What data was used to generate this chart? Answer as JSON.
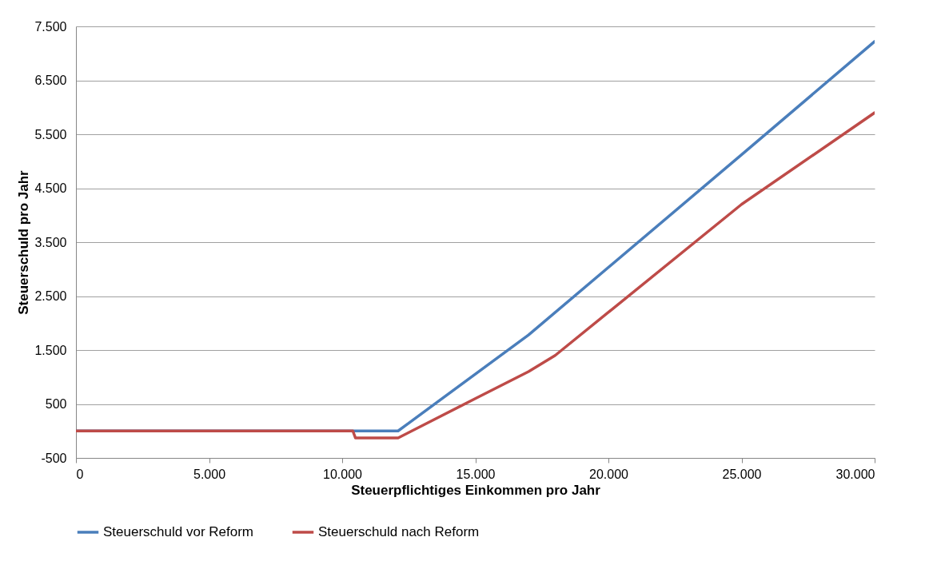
{
  "chart_data": {
    "type": "line",
    "xlabel": "Steuerpflichtiges Einkommen pro Jahr",
    "ylabel": "Steuerschuld pro Jahr",
    "xlim": [
      0,
      30000
    ],
    "ylim": [
      -500,
      7500
    ],
    "xticks": [
      0,
      {
        "value": 5000,
        "label": "5.000"
      },
      {
        "value": 10000,
        "label": "10.000"
      },
      {
        "value": 15000,
        "label": "15.000"
      },
      {
        "value": 20000,
        "label": "20.000"
      },
      {
        "value": 25000,
        "label": "25.000"
      },
      {
        "value": 30000,
        "label": "30.000"
      }
    ],
    "yticks": [
      -500,
      500,
      {
        "value": 1500,
        "label": "1.500"
      },
      {
        "value": 2500,
        "label": "2.500"
      },
      {
        "value": 3500,
        "label": "3.500"
      },
      {
        "value": 4500,
        "label": "4.500"
      },
      {
        "value": 5500,
        "label": "5.500"
      },
      {
        "value": 6500,
        "label": "6.500"
      },
      {
        "value": 7500,
        "label": "7.500"
      }
    ],
    "grid": "y",
    "legend": "bottom",
    "marker": "none",
    "line_style": "solid",
    "series": [
      {
        "name": "Steuerschuld vor Reform",
        "color": "#4a7ebb",
        "x": [
          0,
          10400,
          10450,
          12100,
          17000,
          25000,
          30000
        ],
        "values": [
          0,
          0,
          0,
          0,
          1780,
          5120,
          7220
        ]
      },
      {
        "name": "Steuerschuld nach Reform",
        "color": "#be4b48",
        "x": [
          0,
          10400,
          10500,
          12100,
          15000,
          17000,
          18000,
          25000,
          30000
        ],
        "values": [
          0,
          0,
          -130,
          -130,
          600,
          1100,
          1400,
          4200,
          5900
        ]
      }
    ]
  }
}
